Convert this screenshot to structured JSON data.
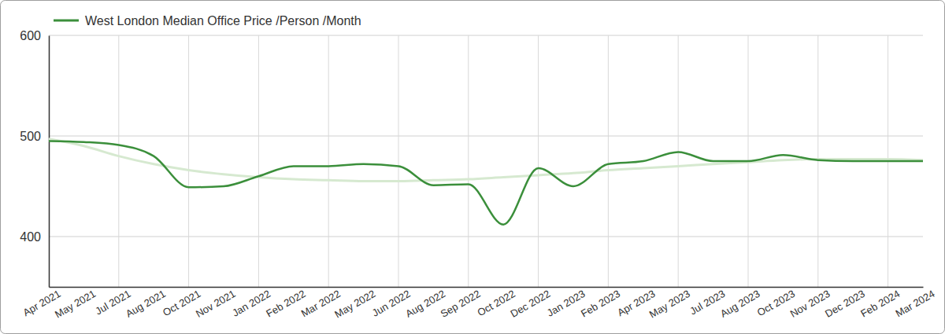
{
  "chart_data": {
    "type": "line",
    "categories": [
      "Apr 2021",
      "May 2021",
      "Jul 2021",
      "Aug 2021",
      "Oct 2021",
      "Nov 2021",
      "Jan 2022",
      "Feb 2022",
      "Mar 2022",
      "May 2022",
      "Jun 2022",
      "Aug 2022",
      "Sep 2022",
      "Oct 2022",
      "Dec 2022",
      "Jan 2023",
      "Feb 2023",
      "Apr 2023",
      "May 2023",
      "Jul 2023",
      "Aug 2023",
      "Oct 2023",
      "Nov 2023",
      "Dec 2023",
      "Feb 2024",
      "Mar 2024"
    ],
    "series": [
      {
        "name": "West London Median Office Price /Person /Month",
        "color": "#3b8f3b",
        "values": [
          495,
          494,
          491,
          480,
          449,
          450,
          460,
          470,
          470,
          472,
          470,
          451,
          452,
          412,
          468,
          450,
          472,
          475,
          484,
          475,
          475,
          481,
          476,
          475,
          475,
          475
        ]
      },
      {
        "color": "#d6e9d0",
        "values": [
          497,
          490,
          480,
          472,
          466,
          462,
          459,
          457,
          456,
          455,
          455,
          456,
          457,
          459,
          461,
          463,
          466,
          468,
          470,
          472,
          474,
          476,
          477,
          477,
          477,
          476
        ]
      }
    ],
    "ylim": [
      350,
      600
    ],
    "yticks": [
      400,
      500,
      600
    ],
    "grid": true,
    "legend": "top-left"
  }
}
